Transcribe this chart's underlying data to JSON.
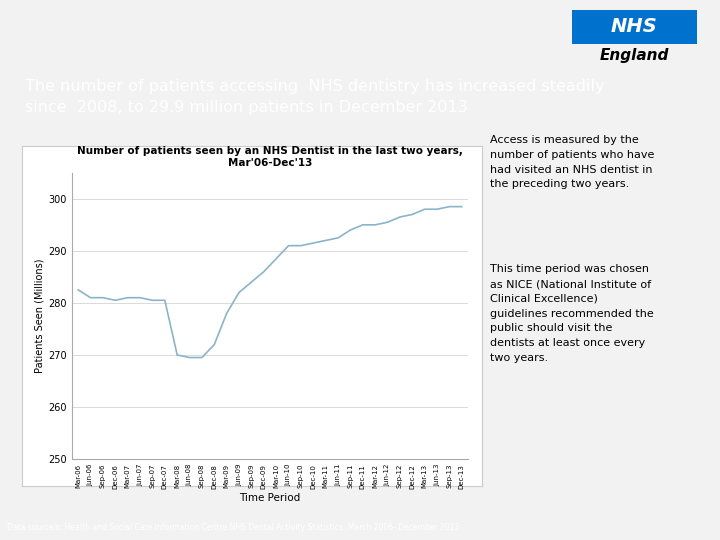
{
  "title_text": "The number of patients accessing  NHS dentistry has increased steadily\nsince  2008, to 29.9 million patients in December 2013",
  "title_bg": "#00b0b9",
  "title_color": "#ffffff",
  "chart_title_line1": "Number of patients seen by an NHS Dentist in the last two years,",
  "chart_title_line2": "Mar'06-Dec'13",
  "xlabel": "Time Period",
  "ylabel": "Patients Seen (Millions)",
  "footnote": "Data source/s: Health and Social Care Information Centre NHS Dental Activity Statistics: March 2006- December 2013",
  "footnote_bg": "#00b0b9",
  "right_text1": "Access is measured by the\nnumber of patients who have\nhad visited an NHS dentist in\nthe preceding two years.",
  "right_text2": "This time period was chosen\nas NICE (National Institute of\nClinical Excellence)\nguidelines recommended the\npublic should visit the\ndentists at least once every\ntwo years.",
  "nhs_logo_blue": "#0072ce",
  "line_color": "#8ab4c8",
  "ylim": [
    250,
    305
  ],
  "yticks": [
    250,
    260,
    270,
    280,
    290,
    300
  ],
  "x_labels": [
    "Mar-06",
    "Jun-06",
    "Sep-06",
    "Dec-06",
    "Mar-07",
    "Jun-07",
    "Sep-07",
    "Dec-07",
    "Mar-08",
    "Jun-08",
    "Sep-08",
    "Dec-08",
    "Mar-09",
    "Jun-09",
    "Sep-09",
    "Dec-09",
    "Mar-10",
    "Jun-10",
    "Sep-10",
    "Dec-10",
    "Mar-11",
    "Jun-11",
    "Sep-11",
    "Dec-11",
    "Mar-12",
    "Jun-12",
    "Sep-12",
    "Dec-12",
    "Mar-13",
    "Jun-13",
    "Sep-13",
    "Dec-13"
  ],
  "y_values": [
    282.5,
    281.0,
    281.0,
    280.5,
    281.0,
    281.0,
    280.5,
    280.5,
    270.0,
    269.5,
    269.5,
    272.0,
    278.0,
    282.0,
    284.0,
    286.0,
    288.5,
    291.0,
    291.0,
    291.5,
    292.0,
    292.5,
    294.0,
    295.0,
    295.0,
    295.5,
    296.5,
    297.0,
    298.0,
    298.0,
    298.5,
    298.5
  ],
  "bg_color": "#f0f0f0"
}
